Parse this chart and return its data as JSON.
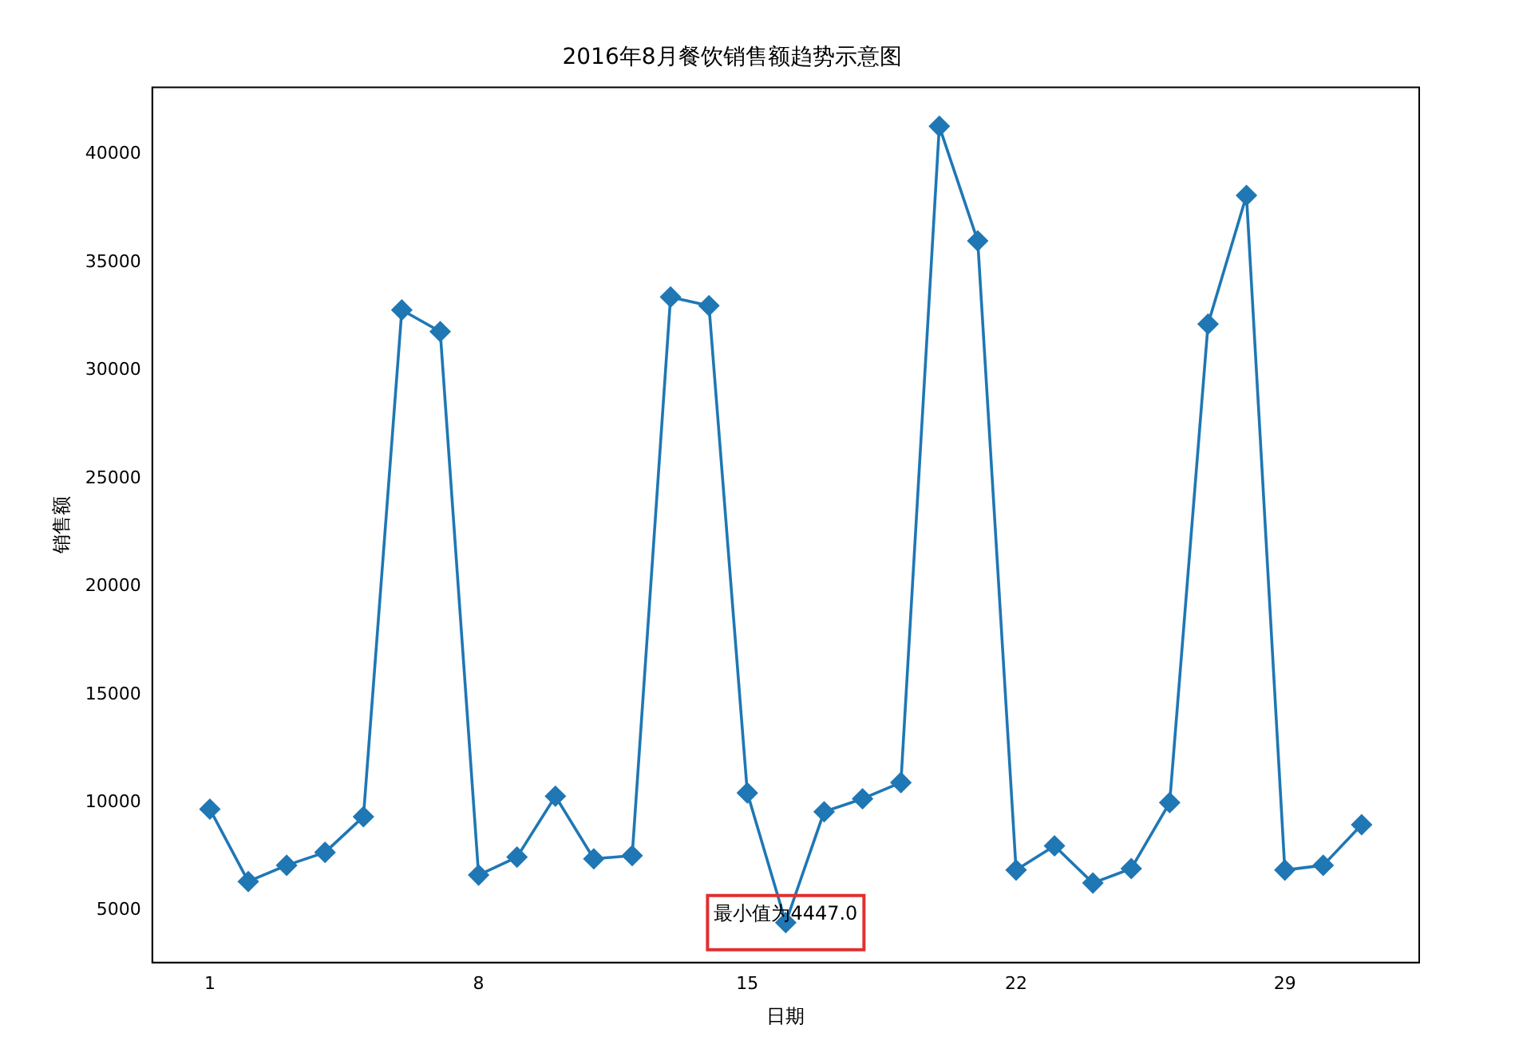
{
  "chart_data": {
    "type": "line",
    "title": "2016年8月餐饮销售额趋势示意图",
    "xlabel": "日期",
    "ylabel": "销售额",
    "x": [
      1,
      2,
      3,
      4,
      5,
      6,
      7,
      8,
      9,
      10,
      11,
      12,
      13,
      14,
      15,
      16,
      17,
      18,
      19,
      20,
      21,
      22,
      23,
      24,
      25,
      26,
      27,
      28,
      29,
      30,
      31
    ],
    "series": [
      {
        "color": "#1f77b4",
        "values": [
          9700,
          6350,
          7100,
          7700,
          9350,
          32800,
          31800,
          6650,
          7480,
          10300,
          7400,
          7550,
          33400,
          33000,
          10450,
          4447,
          9580,
          10180,
          10930,
          41300,
          36000,
          6880,
          8000,
          6280,
          6950,
          10000,
          32150,
          38100,
          6880,
          7100,
          8980
        ]
      }
    ],
    "xlim": [
      -0.5,
      32.5
    ],
    "xticks": [
      1,
      8,
      15,
      22,
      29
    ],
    "ylim": [
      2600,
      43100
    ],
    "yticks": [
      5000,
      10000,
      15000,
      20000,
      25000,
      30000,
      35000,
      40000
    ],
    "annotations": [
      {
        "text": "最小值为4447.0",
        "x": 16,
        "y": 4447
      }
    ],
    "grid": false,
    "legend": false,
    "marker": "diamond",
    "line_style": "solid"
  }
}
